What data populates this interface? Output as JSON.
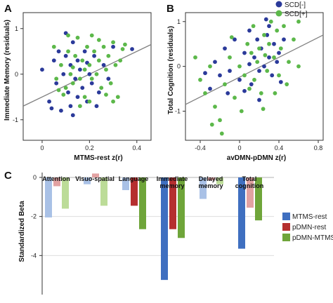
{
  "panels": {
    "A": {
      "letter": "A"
    },
    "B": {
      "letter": "B"
    },
    "C": {
      "letter": "C"
    }
  },
  "legend_scd": {
    "items": [
      {
        "label": "SCD[-]",
        "color": "#2b3a9a"
      },
      {
        "label": "SCD[+]",
        "color": "#5cb84a"
      }
    ]
  },
  "colors": {
    "scd_minus": "#2b3a9a",
    "scd_plus": "#5cb84a",
    "fit_line": "#808080",
    "mtms_strong": "#3f6fc0",
    "mtms_light": "#a9c1e6",
    "pdmn_strong": "#b52f2f",
    "pdmn_light": "#e2a2a2",
    "pdmn_mtms_strong": "#6fa53a",
    "pdmn_mtms_light": "#bcdc98"
  },
  "chart_data": [
    {
      "panel": "A",
      "type": "scatter",
      "title": "",
      "xlabel": "MTMS-rest z(r)",
      "ylabel": "Immediate Memory (residuals)",
      "xlim": [
        -0.08,
        0.46
      ],
      "ylim": [
        -1.45,
        1.35
      ],
      "xticks": [
        0,
        0.2,
        0.4
      ],
      "xtick_labels": [
        "0",
        "0.2",
        "0.4"
      ],
      "yticks": [
        -1,
        0,
        1
      ],
      "ytick_labels": [
        "-1",
        "0",
        "1"
      ],
      "grid": false,
      "fit_line": {
        "x": [
          -0.08,
          0.46
        ],
        "y": [
          -0.7,
          0.65
        ]
      },
      "series": [
        {
          "name": "SCD[-]",
          "points": [
            [
              0.0,
              0.1
            ],
            [
              0.03,
              -0.6
            ],
            [
              0.05,
              0.3
            ],
            [
              0.06,
              -0.2
            ],
            [
              0.07,
              0.5
            ],
            [
              0.08,
              -0.8
            ],
            [
              0.09,
              0.0
            ],
            [
              0.1,
              0.4
            ],
            [
              0.11,
              -0.4
            ],
            [
              0.12,
              0.2
            ],
            [
              0.12,
              -0.7
            ],
            [
              0.13,
              0.7
            ],
            [
              0.14,
              -0.1
            ],
            [
              0.15,
              0.3
            ],
            [
              0.15,
              -0.5
            ],
            [
              0.16,
              0.1
            ],
            [
              0.17,
              -0.3
            ],
            [
              0.18,
              0.5
            ],
            [
              0.19,
              -0.6
            ],
            [
              0.2,
              0.0
            ],
            [
              0.21,
              -0.2
            ],
            [
              0.22,
              0.4
            ],
            [
              0.24,
              -0.4
            ],
            [
              0.26,
              0.2
            ],
            [
              0.28,
              -0.1
            ],
            [
              0.3,
              0.6
            ],
            [
              0.1,
              0.9
            ],
            [
              0.04,
              -0.75
            ],
            [
              0.13,
              -0.9
            ],
            [
              0.19,
              0.25
            ],
            [
              0.23,
              -0.7
            ],
            [
              0.38,
              0.55
            ]
          ]
        },
        {
          "name": "SCD[+]",
          "points": [
            [
              0.05,
              0.6
            ],
            [
              0.06,
              -0.1
            ],
            [
              0.08,
              0.2
            ],
            [
              0.1,
              -0.3
            ],
            [
              0.11,
              0.5
            ],
            [
              0.12,
              0.0
            ],
            [
              0.13,
              -0.2
            ],
            [
              0.14,
              0.4
            ],
            [
              0.15,
              0.8
            ],
            [
              0.16,
              -0.1
            ],
            [
              0.17,
              0.3
            ],
            [
              0.18,
              0.1
            ],
            [
              0.18,
              -0.5
            ],
            [
              0.19,
              0.6
            ],
            [
              0.2,
              0.2
            ],
            [
              0.21,
              -0.1
            ],
            [
              0.22,
              0.5
            ],
            [
              0.23,
              0.0
            ],
            [
              0.24,
              0.3
            ],
            [
              0.25,
              -0.3
            ],
            [
              0.26,
              0.6
            ],
            [
              0.27,
              0.1
            ],
            [
              0.28,
              0.4
            ],
            [
              0.29,
              -0.2
            ],
            [
              0.3,
              0.7
            ],
            [
              0.31,
              0.2
            ],
            [
              0.32,
              -0.5
            ],
            [
              0.33,
              0.3
            ],
            [
              0.34,
              0.55
            ],
            [
              0.11,
              0.85
            ],
            [
              0.09,
              -0.45
            ],
            [
              0.16,
              -0.7
            ],
            [
              0.2,
              -0.6
            ],
            [
              0.24,
              0.75
            ],
            [
              0.35,
              0.65
            ],
            [
              0.27,
              -0.45
            ],
            [
              0.3,
              -0.6
            ],
            [
              0.13,
              0.15
            ],
            [
              0.21,
              0.85
            ],
            [
              0.07,
              -0.35
            ]
          ]
        }
      ]
    },
    {
      "panel": "B",
      "type": "scatter",
      "title": "",
      "xlabel": "avDMN-pDMN z(r)",
      "ylabel": "Total Cognition (residuals)",
      "xlim": [
        -0.55,
        0.85
      ],
      "ylim": [
        -1.65,
        1.2
      ],
      "xticks": [
        -0.4,
        0,
        0.4,
        0.8
      ],
      "xtick_labels": [
        "-0.4",
        "0",
        "0.4",
        "0.8"
      ],
      "yticks": [
        -1,
        0,
        1
      ],
      "ytick_labels": [
        "-1",
        "0",
        "1"
      ],
      "grid": false,
      "fit_line": {
        "x": [
          -0.55,
          0.85
        ],
        "y": [
          -0.85,
          0.7
        ]
      },
      "series": [
        {
          "name": "SCD[-]",
          "points": [
            [
              -0.3,
              -0.5
            ],
            [
              -0.25,
              0.1
            ],
            [
              -0.2,
              -0.2
            ],
            [
              -0.15,
              0.4
            ],
            [
              -0.1,
              -0.1
            ],
            [
              -0.05,
              0.6
            ],
            [
              0.0,
              -0.3
            ],
            [
              0.05,
              0.3
            ],
            [
              0.1,
              0.8
            ],
            [
              0.12,
              -0.4
            ],
            [
              0.15,
              0.2
            ],
            [
              0.18,
              0.6
            ],
            [
              0.2,
              -0.1
            ],
            [
              0.22,
              0.4
            ],
            [
              0.25,
              0.0
            ],
            [
              0.28,
              0.7
            ],
            [
              0.3,
              0.2
            ],
            [
              0.33,
              -0.2
            ],
            [
              0.35,
              0.5
            ],
            [
              0.38,
              0.1
            ],
            [
              0.4,
              0.3
            ],
            [
              0.45,
              0.6
            ],
            [
              -0.12,
              -0.6
            ],
            [
              0.05,
              -0.55
            ],
            [
              0.3,
              0.9
            ],
            [
              0.1,
              0.05
            ],
            [
              -0.35,
              -0.15
            ],
            [
              0.2,
              -0.75
            ],
            [
              0.42,
              -0.35
            ],
            [
              0.27,
              1.05
            ]
          ]
        },
        {
          "name": "SCD[+]",
          "points": [
            [
              -0.4,
              -0.3
            ],
            [
              -0.35,
              -0.6
            ],
            [
              -0.3,
              0.0
            ],
            [
              -0.25,
              -0.9
            ],
            [
              -0.2,
              -1.2
            ],
            [
              -0.15,
              -0.4
            ],
            [
              -0.1,
              0.2
            ],
            [
              -0.05,
              -0.7
            ],
            [
              0.0,
              0.0
            ],
            [
              0.05,
              -0.2
            ],
            [
              0.08,
              0.5
            ],
            [
              0.1,
              -0.5
            ],
            [
              0.12,
              0.3
            ],
            [
              0.15,
              -0.3
            ],
            [
              0.18,
              0.1
            ],
            [
              0.2,
              0.4
            ],
            [
              0.22,
              -0.6
            ],
            [
              0.25,
              0.7
            ],
            [
              0.28,
              -0.1
            ],
            [
              0.3,
              0.5
            ],
            [
              0.32,
              1.0
            ],
            [
              0.35,
              0.2
            ],
            [
              0.38,
              0.8
            ],
            [
              0.4,
              -0.2
            ],
            [
              0.42,
              0.4
            ],
            [
              0.45,
              0.9
            ],
            [
              0.5,
              0.1
            ],
            [
              0.55,
              0.6
            ],
            [
              0.6,
              0.0
            ],
            [
              -0.28,
              -1.3
            ],
            [
              -0.18,
              -1.5
            ],
            [
              -0.45,
              0.2
            ],
            [
              0.02,
              -1.0
            ],
            [
              0.14,
              0.9
            ],
            [
              0.24,
              -0.95
            ],
            [
              0.36,
              -0.6
            ],
            [
              0.48,
              -0.4
            ],
            [
              -0.08,
              0.65
            ],
            [
              0.6,
              1.0
            ],
            [
              0.26,
              0.25
            ]
          ]
        }
      ]
    },
    {
      "panel": "C",
      "type": "bar",
      "title": "",
      "xlabel": "",
      "ylabel": "Standardized Beta",
      "ylim": [
        -6,
        0.25
      ],
      "yticks": [
        0,
        -2,
        -4
      ],
      "ytick_labels": [
        "0",
        "-2",
        "-4"
      ],
      "grid": true,
      "legend_position": "right",
      "categories": [
        "Attention",
        "Visuo-spatial",
        "Language",
        "Immediate memory",
        "Delayed memory",
        "Total cognition"
      ],
      "category_labels": [
        [
          "Attention"
        ],
        [
          "Visuo-spatial"
        ],
        [
          "Language"
        ],
        [
          "Immediate",
          "memory"
        ],
        [
          "Delayed",
          "memory"
        ],
        [
          "Total",
          "cognition"
        ]
      ],
      "series": [
        {
          "name": "MTMS-rest",
          "values": [
            -2.05,
            -0.35,
            -0.65,
            -5.25,
            -1.1,
            -3.65
          ],
          "strong": [
            false,
            false,
            false,
            true,
            false,
            true
          ]
        },
        {
          "name": "pDMN-rest",
          "values": [
            -0.45,
            0.2,
            -1.45,
            -2.65,
            -0.15,
            -1.55
          ],
          "strong": [
            false,
            false,
            true,
            true,
            false,
            false
          ]
        },
        {
          "name": "pDMN-MTMS",
          "values": [
            -1.6,
            -1.45,
            -2.65,
            -3.1,
            -0.35,
            -2.2
          ],
          "strong": [
            false,
            false,
            true,
            true,
            false,
            true
          ]
        }
      ]
    }
  ]
}
